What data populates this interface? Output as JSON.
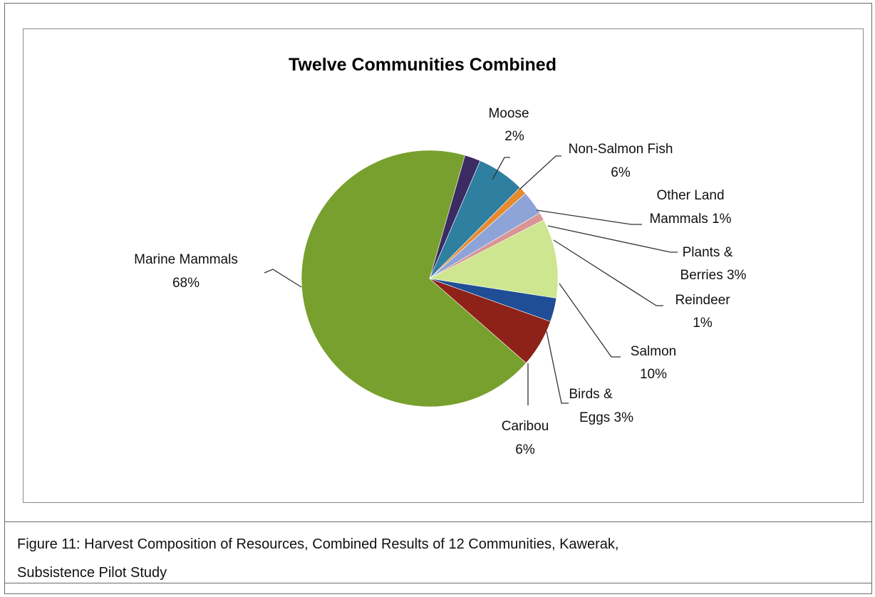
{
  "chart_data": {
    "type": "pie",
    "title": "Twelve Communities Combined",
    "slices": [
      {
        "name": "Marine Mammals",
        "value": 68,
        "label": "68%",
        "color": "#77a02e"
      },
      {
        "name": "Moose",
        "value": 2,
        "label": "2%",
        "color": "#3c2a63"
      },
      {
        "name": "Non-Salmon Fish",
        "value": 6,
        "label": "6%",
        "color": "#2f7fa0"
      },
      {
        "name": "Other Land Mammals",
        "value": 1,
        "label": "1%",
        "color": "#e68a2e"
      },
      {
        "name": "Plants & Berries",
        "value": 3,
        "label": "3%",
        "color": "#8ea4d8"
      },
      {
        "name": "Reindeer",
        "value": 1,
        "label": "1%",
        "color": "#d99595"
      },
      {
        "name": "Salmon",
        "value": 10,
        "label": "10%",
        "color": "#cde68f"
      },
      {
        "name": "Birds & Eggs",
        "value": 3,
        "label": "3%",
        "color": "#1f4e96"
      },
      {
        "name": "Caribou",
        "value": 6,
        "label": "6%",
        "color": "#8e2218"
      }
    ],
    "labels": {
      "marine_mammals": [
        "Marine Mammals",
        "68%"
      ],
      "moose": [
        "Moose",
        "2%"
      ],
      "non_salmon_fish": [
        "Non-Salmon  Fish",
        "6%"
      ],
      "other_land_mammals": [
        "Other Land",
        "Mammals  1%"
      ],
      "plants_berries": [
        "Plants &",
        "Berries 3%"
      ],
      "reindeer": [
        "Reindeer",
        "1%"
      ],
      "salmon": [
        "Salmon",
        "10%"
      ],
      "birds_eggs": [
        "Birds &",
        "Eggs 3%"
      ],
      "caribou": [
        "Caribou",
        "6%"
      ]
    }
  },
  "caption": {
    "line1": "Figure 11: Harvest Composition of Resources, Combined Results of 12 Communities,  Kawerak,",
    "line2": "Subsistence Pilot Study"
  }
}
